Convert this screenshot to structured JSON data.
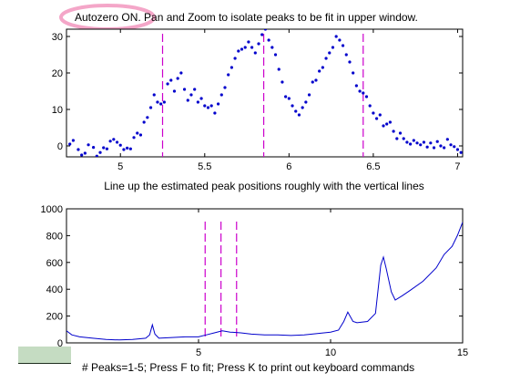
{
  "upper": {
    "title_badge": "Autozero ON.",
    "title_rest": " Pan and Zoom to isolate peaks to be fit in upper window.",
    "caption": "Line up the estimated peak positions roughly with the vertical lines",
    "line_color": "#0000cc",
    "marker_color": "#cc00cc",
    "badge_color": "#f4a6c8"
  },
  "lower": {
    "line_color": "#0000cc",
    "marker_color": "#cc00cc"
  },
  "status": {
    "text": "# Peaks=1-5; Press F to fit; Press K to print out keyboard commands"
  },
  "chart_data": [
    {
      "type": "scatter",
      "title": "Autozero ON. Pan and Zoom to isolate peaks to be fit in upper window.",
      "xlabel": "Line up the estimated peak positions roughly with the vertical lines",
      "ylabel": "",
      "xlim": [
        4.68,
        7.03
      ],
      "ylim": [
        -3,
        32
      ],
      "xticks": [
        5,
        5.5,
        6,
        6.5,
        7
      ],
      "xtick_labels": [
        "5",
        "5.5",
        "6",
        "6.5",
        "7"
      ],
      "yticks": [
        0,
        10,
        20,
        30
      ],
      "ytick_labels": [
        "0",
        "10",
        "20",
        "30"
      ],
      "vertical_markers": [
        5.25,
        5.85,
        6.44
      ],
      "series": [
        {
          "points": [
            [
              4.7,
              0.5
            ],
            [
              4.72,
              1.5
            ],
            [
              4.75,
              -1.0
            ],
            [
              4.77,
              -2.5
            ],
            [
              4.79,
              -2.0
            ],
            [
              4.81,
              0.3
            ],
            [
              4.84,
              -0.4
            ],
            [
              4.86,
              -2.8
            ],
            [
              4.88,
              -1.8
            ],
            [
              4.9,
              -0.5
            ],
            [
              4.92,
              -0.8
            ],
            [
              4.94,
              1.3
            ],
            [
              4.96,
              1.8
            ],
            [
              4.98,
              1.0
            ],
            [
              5.0,
              0.2
            ],
            [
              5.02,
              -1.0
            ],
            [
              5.04,
              -0.6
            ],
            [
              5.06,
              -0.8
            ],
            [
              5.08,
              2.3
            ],
            [
              5.1,
              3.5
            ],
            [
              5.12,
              3.0
            ],
            [
              5.14,
              6.5
            ],
            [
              5.16,
              7.8
            ],
            [
              5.18,
              10.5
            ],
            [
              5.2,
              14.0
            ],
            [
              5.22,
              12.0
            ],
            [
              5.24,
              11.5
            ],
            [
              5.26,
              12.0
            ],
            [
              5.28,
              17.0
            ],
            [
              5.3,
              18.0
            ],
            [
              5.32,
              15.0
            ],
            [
              5.34,
              18.5
            ],
            [
              5.36,
              20.0
            ],
            [
              5.38,
              15.5
            ],
            [
              5.4,
              12.5
            ],
            [
              5.42,
              14.0
            ],
            [
              5.44,
              15.5
            ],
            [
              5.46,
              12.0
            ],
            [
              5.48,
              13.0
            ],
            [
              5.5,
              11.0
            ],
            [
              5.52,
              10.5
            ],
            [
              5.54,
              11.0
            ],
            [
              5.56,
              9.0
            ],
            [
              5.58,
              11.5
            ],
            [
              5.6,
              14.0
            ],
            [
              5.62,
              16.0
            ],
            [
              5.64,
              19.5
            ],
            [
              5.66,
              21.5
            ],
            [
              5.68,
              24.0
            ],
            [
              5.7,
              26.0
            ],
            [
              5.72,
              26.5
            ],
            [
              5.74,
              27.0
            ],
            [
              5.76,
              28.5
            ],
            [
              5.78,
              27.0
            ],
            [
              5.8,
              25.5
            ],
            [
              5.82,
              28.0
            ],
            [
              5.84,
              30.5
            ],
            [
              5.86,
              32.0
            ],
            [
              5.88,
              29.0
            ],
            [
              5.9,
              27.0
            ],
            [
              5.92,
              25.0
            ],
            [
              5.94,
              21.0
            ],
            [
              5.96,
              17.5
            ],
            [
              5.98,
              13.5
            ],
            [
              6.0,
              13.0
            ],
            [
              6.02,
              11.0
            ],
            [
              6.04,
              9.5
            ],
            [
              6.06,
              8.5
            ],
            [
              6.08,
              10.5
            ],
            [
              6.1,
              12.0
            ],
            [
              6.12,
              14.0
            ],
            [
              6.14,
              17.5
            ],
            [
              6.16,
              18.0
            ],
            [
              6.18,
              20.5
            ],
            [
              6.2,
              21.5
            ],
            [
              6.22,
              24.0
            ],
            [
              6.24,
              25.5
            ],
            [
              6.26,
              27.0
            ],
            [
              6.28,
              30.0
            ],
            [
              6.3,
              29.0
            ],
            [
              6.32,
              27.5
            ],
            [
              6.34,
              25.0
            ],
            [
              6.36,
              23.0
            ],
            [
              6.38,
              20.0
            ],
            [
              6.4,
              16.5
            ],
            [
              6.42,
              15.0
            ],
            [
              6.44,
              14.5
            ],
            [
              6.46,
              13.5
            ],
            [
              6.48,
              11.0
            ],
            [
              6.5,
              9.0
            ],
            [
              6.52,
              7.5
            ],
            [
              6.54,
              8.5
            ],
            [
              6.56,
              5.5
            ],
            [
              6.58,
              6.0
            ],
            [
              6.6,
              6.5
            ],
            [
              6.62,
              4.0
            ],
            [
              6.64,
              2.0
            ],
            [
              6.66,
              3.5
            ],
            [
              6.68,
              2.0
            ],
            [
              6.7,
              1.0
            ],
            [
              6.72,
              0.5
            ],
            [
              6.74,
              1.5
            ],
            [
              6.76,
              0.8
            ],
            [
              6.78,
              0.3
            ],
            [
              6.8,
              1.0
            ],
            [
              6.82,
              -0.3
            ],
            [
              6.84,
              0.8
            ],
            [
              6.86,
              -0.5
            ],
            [
              6.88,
              1.2
            ],
            [
              6.9,
              0.0
            ],
            [
              6.92,
              -0.5
            ],
            [
              6.94,
              1.8
            ],
            [
              6.96,
              0.3
            ],
            [
              6.98,
              -0.2
            ],
            [
              7.0,
              -1.0
            ],
            [
              7.02,
              -1.8
            ]
          ]
        }
      ]
    },
    {
      "type": "line",
      "title": "",
      "xlabel": "",
      "ylabel": "",
      "xlim": [
        0,
        15
      ],
      "ylim": [
        0,
        1000
      ],
      "xticks": [
        0,
        5,
        10,
        15
      ],
      "xtick_labels": [
        "0",
        "5",
        "10",
        "15"
      ],
      "yticks": [
        0,
        200,
        400,
        600,
        800,
        1000
      ],
      "ytick_labels": [
        "0",
        "200",
        "400",
        "600",
        "800",
        "1000"
      ],
      "vertical_markers": [
        5.25,
        5.85,
        6.44
      ],
      "series": [
        {
          "points": [
            [
              0.0,
              90
            ],
            [
              0.2,
              60
            ],
            [
              0.5,
              45
            ],
            [
              1.0,
              35
            ],
            [
              1.5,
              25
            ],
            [
              2.0,
              22
            ],
            [
              2.5,
              25
            ],
            [
              3.0,
              35
            ],
            [
              3.15,
              60
            ],
            [
              3.25,
              135
            ],
            [
              3.35,
              65
            ],
            [
              3.5,
              35
            ],
            [
              4.0,
              40
            ],
            [
              4.5,
              45
            ],
            [
              5.0,
              45
            ],
            [
              5.3,
              60
            ],
            [
              5.6,
              75
            ],
            [
              5.9,
              90
            ],
            [
              6.2,
              80
            ],
            [
              6.6,
              75
            ],
            [
              7.0,
              65
            ],
            [
              7.5,
              60
            ],
            [
              8.0,
              60
            ],
            [
              8.5,
              55
            ],
            [
              9.0,
              60
            ],
            [
              9.5,
              70
            ],
            [
              10.0,
              80
            ],
            [
              10.3,
              95
            ],
            [
              10.5,
              160
            ],
            [
              10.65,
              230
            ],
            [
              10.85,
              160
            ],
            [
              11.0,
              150
            ],
            [
              11.4,
              160
            ],
            [
              11.7,
              220
            ],
            [
              11.9,
              580
            ],
            [
              12.0,
              640
            ],
            [
              12.1,
              560
            ],
            [
              12.3,
              380
            ],
            [
              12.45,
              320
            ],
            [
              12.7,
              350
            ],
            [
              13.0,
              390
            ],
            [
              13.5,
              460
            ],
            [
              14.0,
              560
            ],
            [
              14.3,
              660
            ],
            [
              14.6,
              720
            ],
            [
              14.8,
              800
            ],
            [
              15.0,
              900
            ]
          ]
        }
      ]
    }
  ]
}
